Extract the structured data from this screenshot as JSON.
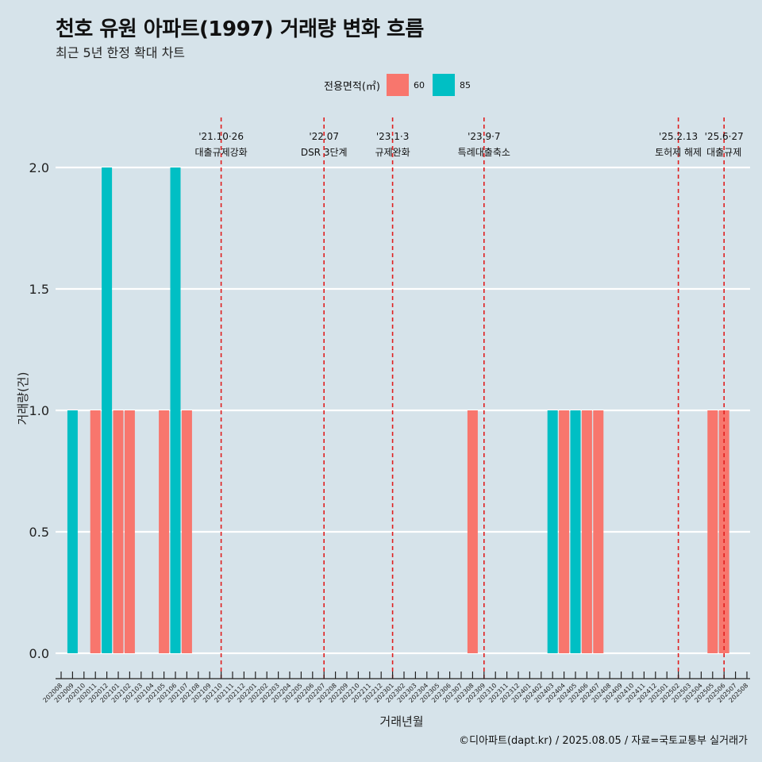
{
  "chart_data": {
    "type": "bar",
    "title": "천호 유원 아파트(1997) 거래량 변화 흐름",
    "subtitle": "최근 5년 한정 확대 차트",
    "xlabel": "거래년월",
    "ylabel": "거래량(건)",
    "ylim": [
      0,
      2
    ],
    "yticks": [
      "0.0",
      "0.5",
      "1.0",
      "1.5",
      "2.0"
    ],
    "legend": {
      "title": "전용면적(㎡)",
      "position": "top",
      "items": [
        {
          "name": "60",
          "color": "#F8766D"
        },
        {
          "name": "85",
          "color": "#00BFC4"
        }
      ]
    },
    "categories": [
      "202008",
      "202009",
      "202010",
      "202011",
      "202012",
      "202101",
      "202102",
      "202103",
      "202104",
      "202105",
      "202106",
      "202107",
      "202108",
      "202109",
      "202110",
      "202111",
      "202112",
      "202201",
      "202202",
      "202203",
      "202204",
      "202205",
      "202206",
      "202207",
      "202208",
      "202209",
      "202210",
      "202211",
      "202212",
      "202301",
      "202302",
      "202303",
      "202304",
      "202305",
      "202306",
      "202307",
      "202308",
      "202309",
      "202310",
      "202311",
      "202312",
      "202401",
      "202402",
      "202403",
      "202404",
      "202405",
      "202406",
      "202407",
      "202408",
      "202409",
      "202410",
      "202411",
      "202412",
      "202501",
      "202502",
      "202503",
      "202504",
      "202505",
      "202506",
      "202507",
      "202508"
    ],
    "series": [
      {
        "name": "60",
        "color": "#F8766D",
        "values": [
          {
            "x": "202011",
            "y": 1
          },
          {
            "x": "202101",
            "y": 1
          },
          {
            "x": "202102",
            "y": 1
          },
          {
            "x": "202105",
            "y": 1
          },
          {
            "x": "202107",
            "y": 1
          },
          {
            "x": "202308",
            "y": 1
          },
          {
            "x": "202404",
            "y": 1
          },
          {
            "x": "202406",
            "y": 1
          },
          {
            "x": "202407",
            "y": 1
          },
          {
            "x": "202505",
            "y": 1
          },
          {
            "x": "202506",
            "y": 1
          }
        ]
      },
      {
        "name": "85",
        "color": "#00BFC4",
        "values": [
          {
            "x": "202009",
            "y": 1
          },
          {
            "x": "202012",
            "y": 2
          },
          {
            "x": "202106",
            "y": 2
          },
          {
            "x": "202312",
            "y": 0
          },
          {
            "x": "202403",
            "y": 1
          },
          {
            "x": "202405",
            "y": 1
          }
        ]
      }
    ],
    "annotations": [
      {
        "x": "202110",
        "date": "'21.10·26",
        "label": "대출규제강화",
        "color": "#e01e1e"
      },
      {
        "x": "202207",
        "date": "'22.07",
        "label": "DSR 3단계",
        "color": "#e01e1e"
      },
      {
        "x": "202301",
        "date": "'23.1·3",
        "label": "규제완화",
        "color": "#e01e1e"
      },
      {
        "x": "202309",
        "date": "'23.9·7",
        "label": "특례대출축소",
        "color": "#e01e1e"
      },
      {
        "x": "202502",
        "date": "'25.2.13",
        "label": "토허제 해제",
        "color": "#e01e1e"
      },
      {
        "x": "202506",
        "date": "'25.6·27",
        "label": "대출규제",
        "color": "#e01e1e"
      }
    ],
    "grid": true
  },
  "caption": "©디아파트(dapt.kr) / 2025.08.05 / 자료=국토교통부 실거래가"
}
